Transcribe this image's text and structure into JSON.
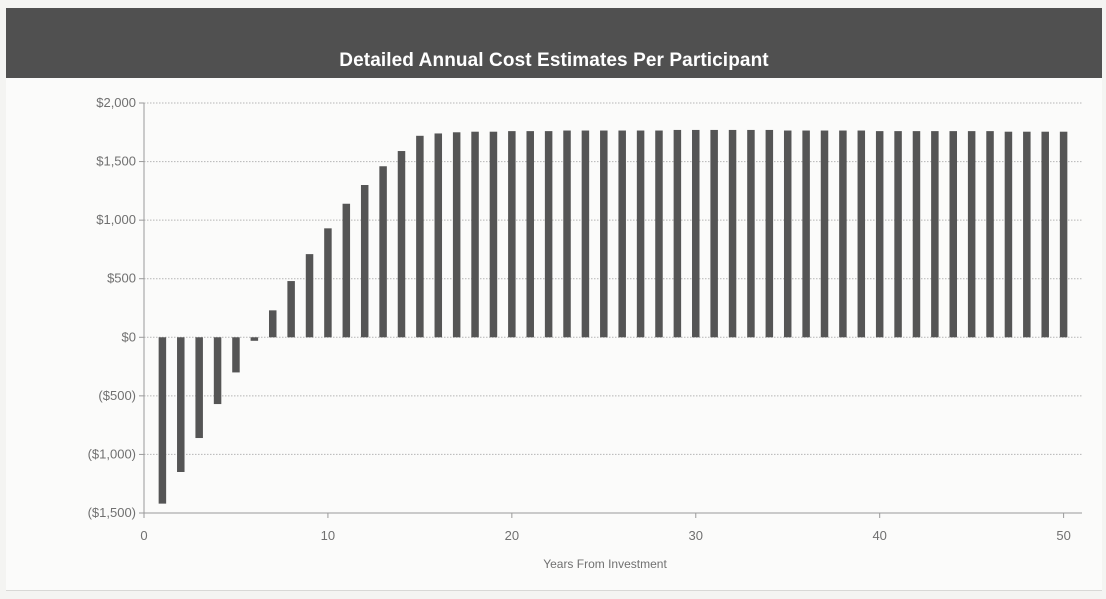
{
  "chart_data": {
    "type": "bar",
    "title": "Detailed Annual Cost Estimates Per Participant",
    "xlabel": "Years From Investment",
    "ylabel": "",
    "xlim": [
      0,
      51
    ],
    "ylim": [
      -1500,
      2000
    ],
    "x_ticks": [
      0,
      10,
      20,
      30,
      40,
      50
    ],
    "x_tick_labels": [
      "0",
      "10",
      "20",
      "30",
      "40",
      "50"
    ],
    "y_ticks": [
      2000,
      1500,
      1000,
      500,
      0,
      -500,
      -1000,
      -1500
    ],
    "y_tick_labels": [
      "$2,000",
      "$1,500",
      "$1,000",
      "$500",
      "$0",
      "($500)",
      "($1,000)",
      "($1,500)"
    ],
    "grid": true,
    "bar_color": "#555555",
    "x": [
      1,
      2,
      3,
      4,
      5,
      6,
      7,
      8,
      9,
      10,
      11,
      12,
      13,
      14,
      15,
      16,
      17,
      18,
      19,
      20,
      21,
      22,
      23,
      24,
      25,
      26,
      27,
      28,
      29,
      30,
      31,
      32,
      33,
      34,
      35,
      36,
      37,
      38,
      39,
      40,
      41,
      42,
      43,
      44,
      45,
      46,
      47,
      48,
      49,
      50
    ],
    "values": [
      -1420,
      -1150,
      -860,
      -570,
      -300,
      -30,
      230,
      480,
      710,
      930,
      1140,
      1300,
      1460,
      1590,
      1720,
      1740,
      1750,
      1755,
      1755,
      1760,
      1760,
      1760,
      1765,
      1765,
      1765,
      1765,
      1765,
      1765,
      1770,
      1770,
      1770,
      1770,
      1770,
      1770,
      1765,
      1765,
      1765,
      1765,
      1765,
      1760,
      1760,
      1760,
      1760,
      1760,
      1760,
      1760,
      1755,
      1755,
      1755,
      1755
    ]
  },
  "colors": {
    "header_bg": "#505050",
    "bar": "#555555",
    "grid": "#b5b5b5",
    "text": "#707070"
  }
}
